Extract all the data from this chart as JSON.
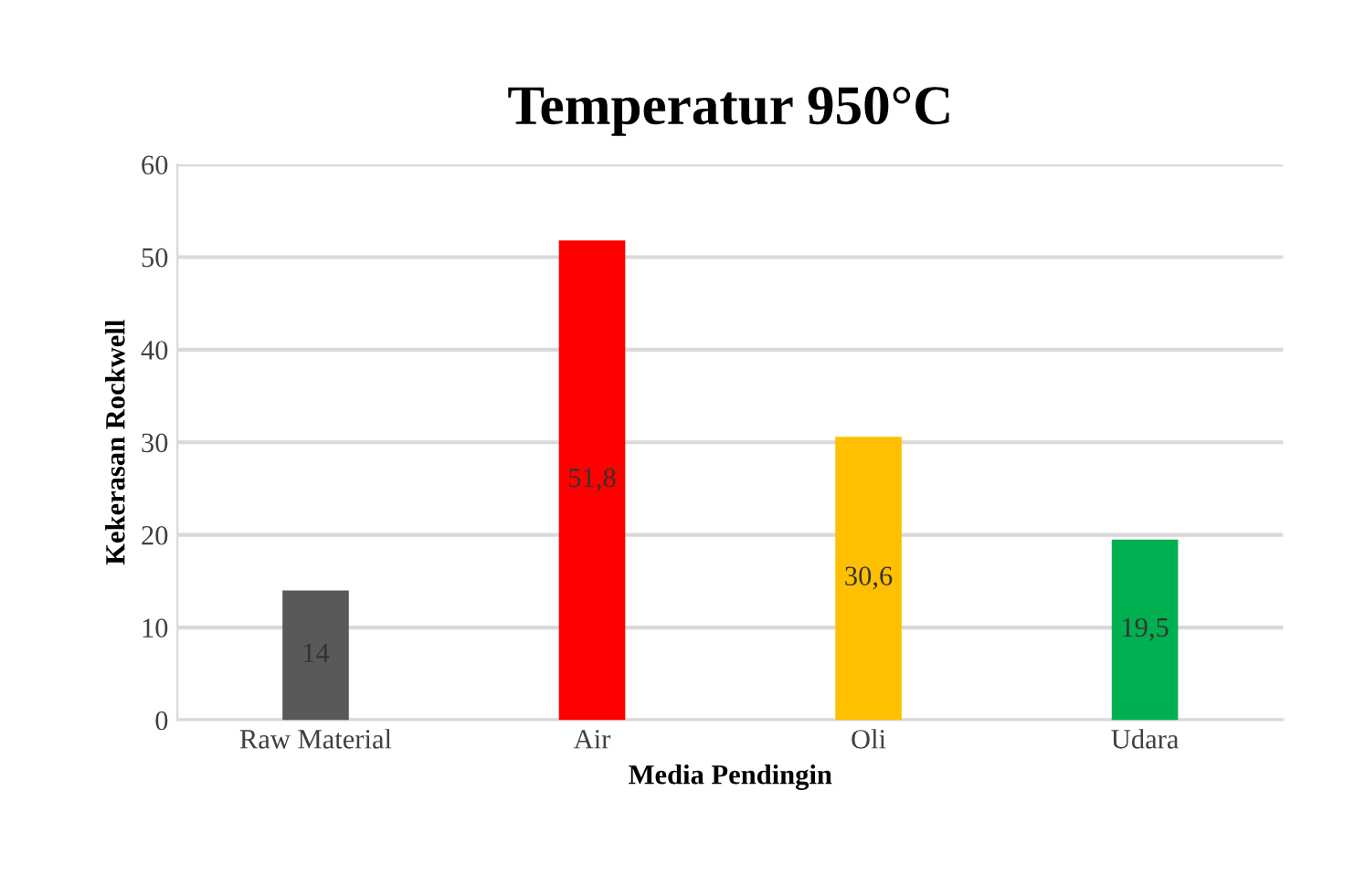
{
  "chart_data": {
    "type": "bar",
    "title": "Temperatur 950°C",
    "xlabel": "Media Pendingin",
    "ylabel": "Kekerasan Rockwell",
    "categories": [
      "Raw Material",
      "Air",
      "Oli",
      "Udara"
    ],
    "values": [
      14,
      51.8,
      30.6,
      19.5
    ],
    "colors": [
      "#595959",
      "#ff0000",
      "#ffc000",
      "#00b050"
    ],
    "value_labels": [
      "14",
      "51,8",
      "30,6",
      "19,5"
    ],
    "ylim": [
      0,
      60
    ],
    "yticks": [
      0,
      10,
      20,
      30,
      40,
      50,
      60
    ],
    "grid": "y",
    "legend": false
  }
}
